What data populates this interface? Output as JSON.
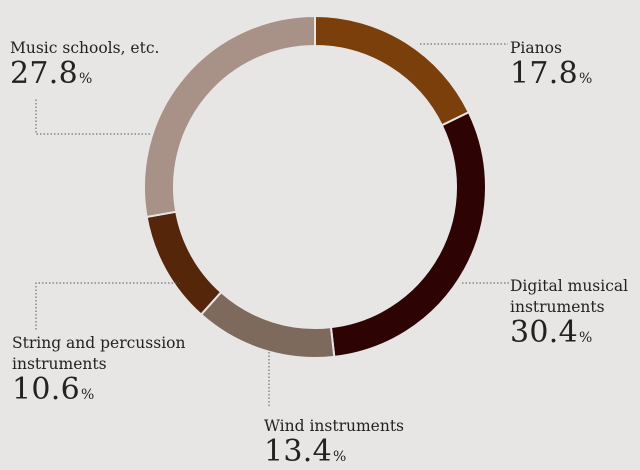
{
  "chart_data": {
    "type": "pie",
    "style": "donut",
    "slices": [
      {
        "label": "Pianos",
        "value": 17.8,
        "color": "#7b3f0c"
      },
      {
        "label": "Digital musical instruments",
        "value": 30.4,
        "color": "#2e0303"
      },
      {
        "label": "Wind instruments",
        "value": 13.4,
        "color": "#7e695d"
      },
      {
        "label": "String and percussion instruments",
        "value": 10.6,
        "color": "#552609"
      },
      {
        "label": "Music schools, etc.",
        "value": 27.8,
        "color": "#a89187"
      }
    ],
    "value_suffix": "%"
  },
  "labels": {
    "pianos": {
      "l1": "Pianos",
      "pct": "17.8",
      "sym": "%"
    },
    "digital": {
      "l1": "Digital musical",
      "l2": "instruments",
      "pct": "30.4",
      "sym": "%"
    },
    "wind": {
      "l1": "Wind instruments",
      "pct": "13.4",
      "sym": "%"
    },
    "string": {
      "l1": "String and percussion",
      "l2": "instruments",
      "pct": "10.6",
      "sym": "%"
    },
    "music": {
      "l1": "Music schools, etc.",
      "pct": "27.8",
      "sym": "%"
    }
  }
}
